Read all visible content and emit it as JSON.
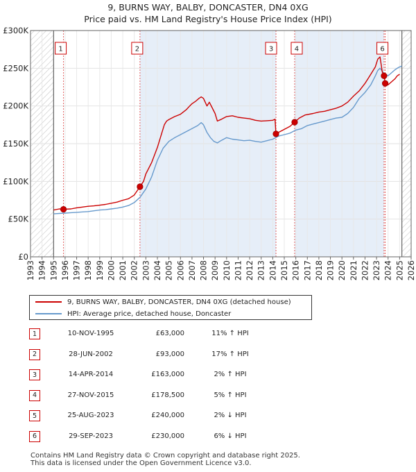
{
  "chart_data": {
    "type": "line",
    "title": "9, BURNS WAY, BALBY, DONCASTER, DN4 0XG",
    "subtitle": "Price paid vs. HM Land Registry's House Price Index (HPI)",
    "xlim": [
      1993,
      2026
    ],
    "ylim": [
      0,
      300000
    ],
    "y_ticks": [
      0,
      50000,
      100000,
      150000,
      200000,
      250000,
      300000
    ],
    "y_tick_labels": [
      "£0",
      "£50K",
      "£100K",
      "£150K",
      "£200K",
      "£250K",
      "£300K"
    ],
    "x_ticks": [
      1993,
      1994,
      1995,
      1996,
      1997,
      1998,
      1999,
      2000,
      2001,
      2002,
      2003,
      2004,
      2005,
      2006,
      2007,
      2008,
      2009,
      2010,
      2011,
      2012,
      2013,
      2014,
      2015,
      2016,
      2017,
      2018,
      2019,
      2020,
      2021,
      2022,
      2023,
      2024,
      2025,
      2026
    ],
    "data_range": [
      1995.0,
      2025.2
    ],
    "grid": true,
    "series": [
      {
        "name": "9, BURNS WAY, BALBY, DONCASTER, DN4 0XG (detached house)",
        "color": "#cc0000",
        "x": [
          1995.0,
          1995.5,
          1995.86,
          1996.5,
          1997.0,
          1997.5,
          1998.0,
          1998.5,
          1999.0,
          1999.5,
          2000.0,
          2000.5,
          2001.0,
          2001.5,
          2002.0,
          2002.49,
          2002.8,
          2003.0,
          2003.5,
          2004.0,
          2004.3,
          2004.6,
          2004.8,
          2005.0,
          2005.5,
          2006.0,
          2006.5,
          2006.8,
          2007.0,
          2007.3,
          2007.6,
          2007.8,
          2008.0,
          2008.3,
          2008.5,
          2008.8,
          2009.0,
          2009.2,
          2009.5,
          2010.0,
          2010.5,
          2011.0,
          2011.5,
          2012.0,
          2012.5,
          2013.0,
          2013.5,
          2014.0,
          2014.2,
          2014.28,
          2014.5,
          2015.0,
          2015.5,
          2015.9,
          2016.3,
          2016.8,
          2017.5,
          2018.0,
          2018.5,
          2019.0,
          2019.5,
          2020.0,
          2020.5,
          2021.0,
          2021.5,
          2022.0,
          2022.5,
          2022.9,
          2023.1,
          2023.3,
          2023.5,
          2023.65,
          2023.75,
          2024.0,
          2024.3,
          2024.6,
          2024.8,
          2025.0
        ],
        "values": [
          62000,
          63500,
          63000,
          63500,
          65000,
          66000,
          67000,
          67500,
          68500,
          69500,
          71000,
          72500,
          75000,
          77000,
          82000,
          93000,
          100000,
          110000,
          125000,
          145000,
          160000,
          175000,
          180000,
          182000,
          186000,
          189000,
          195000,
          200000,
          203000,
          206000,
          210000,
          212000,
          210000,
          200000,
          205000,
          196000,
          190000,
          180000,
          182000,
          186000,
          187000,
          185000,
          184000,
          183000,
          181000,
          180000,
          180500,
          181000,
          182500,
          163000,
          165000,
          169000,
          173000,
          178500,
          184000,
          188000,
          190000,
          192000,
          193000,
          195000,
          197000,
          200000,
          205000,
          213000,
          220000,
          230000,
          242000,
          252000,
          262000,
          265000,
          245000,
          240000,
          230000,
          228000,
          232000,
          236000,
          240000,
          242000
        ]
      },
      {
        "name": "HPI: Average price, detached house, Doncaster",
        "color": "#6699cc",
        "x": [
          1995.0,
          1995.5,
          1996.0,
          1996.5,
          1997.0,
          1997.5,
          1998.0,
          1998.5,
          1999.0,
          1999.5,
          2000.0,
          2000.5,
          2001.0,
          2001.5,
          2002.0,
          2002.5,
          2003.0,
          2003.5,
          2004.0,
          2004.5,
          2005.0,
          2005.5,
          2006.0,
          2006.5,
          2007.0,
          2007.5,
          2007.8,
          2008.0,
          2008.3,
          2008.6,
          2008.9,
          2009.2,
          2009.5,
          2010.0,
          2010.5,
          2011.0,
          2011.5,
          2012.0,
          2012.5,
          2013.0,
          2013.5,
          2014.0,
          2014.5,
          2015.0,
          2015.5,
          2016.0,
          2016.5,
          2017.0,
          2017.5,
          2018.0,
          2018.5,
          2019.0,
          2019.5,
          2020.0,
          2020.5,
          2021.0,
          2021.5,
          2022.0,
          2022.5,
          2022.9,
          2023.1,
          2023.3,
          2023.6,
          2024.0,
          2024.3,
          2024.6,
          2024.9,
          2025.2
        ],
        "values": [
          57000,
          57500,
          58000,
          58500,
          59000,
          59500,
          60000,
          61000,
          62000,
          62500,
          63500,
          64500,
          66000,
          68000,
          72000,
          79000,
          90000,
          106000,
          128000,
          144000,
          153000,
          158000,
          162000,
          166000,
          170000,
          174000,
          178000,
          175000,
          165000,
          158000,
          153000,
          151000,
          154000,
          158000,
          156000,
          155000,
          154000,
          154500,
          153000,
          152000,
          154000,
          156000,
          160000,
          162000,
          164000,
          168000,
          170000,
          174000,
          176000,
          178000,
          180000,
          182000,
          184000,
          185000,
          190000,
          198000,
          210000,
          218000,
          228000,
          240000,
          247000,
          250000,
          244000,
          240000,
          244000,
          248000,
          251000,
          253000
        ]
      }
    ],
    "sale_markers": [
      {
        "label": "1",
        "x": 1995.86,
        "value": 63000
      },
      {
        "label": "2",
        "x": 2002.49,
        "value": 93000
      },
      {
        "label": "3",
        "x": 2014.28,
        "value": 163000
      },
      {
        "label": "4",
        "x": 2015.9,
        "value": 178500
      },
      {
        "label": "5",
        "x": 2023.65,
        "value": 240000
      },
      {
        "label": "6",
        "x": 2023.75,
        "value": 230000
      }
    ],
    "shaded_ranges": [
      [
        2002.49,
        2014.28
      ],
      [
        2015.9,
        2023.65
      ]
    ]
  },
  "legend": {
    "property": "9, BURNS WAY, BALBY, DONCASTER, DN4 0XG (detached house)",
    "hpi": "HPI: Average price, detached house, Doncaster"
  },
  "sales": [
    {
      "num": "1",
      "date": "10-NOV-1995",
      "price": "£63,000",
      "hpi": "11% ↑ HPI"
    },
    {
      "num": "2",
      "date": "28-JUN-2002",
      "price": "£93,000",
      "hpi": "17% ↑ HPI"
    },
    {
      "num": "3",
      "date": "14-APR-2014",
      "price": "£163,000",
      "hpi": "2% ↑ HPI"
    },
    {
      "num": "4",
      "date": "27-NOV-2015",
      "price": "£178,500",
      "hpi": "5% ↑ HPI"
    },
    {
      "num": "5",
      "date": "25-AUG-2023",
      "price": "£240,000",
      "hpi": "2% ↓ HPI"
    },
    {
      "num": "6",
      "date": "29-SEP-2023",
      "price": "£230,000",
      "hpi": "6% ↓ HPI"
    }
  ],
  "footer": {
    "line1": "Contains HM Land Registry data © Crown copyright and database right 2025.",
    "line2": "This data is licensed under the Open Government Licence v3.0."
  }
}
